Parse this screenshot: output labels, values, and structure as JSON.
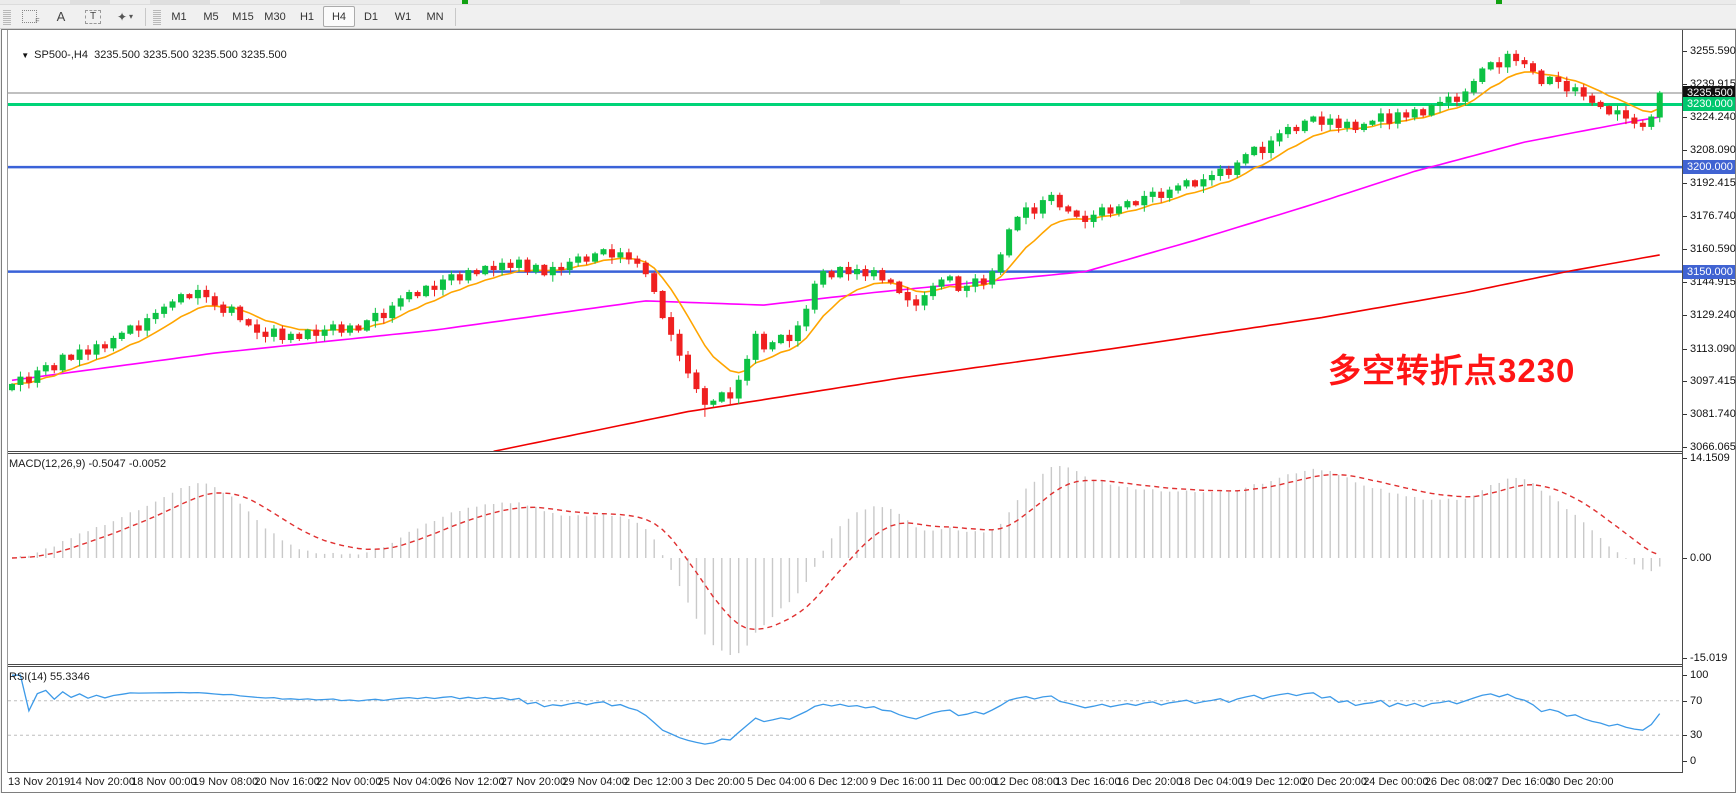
{
  "toolbar": {
    "tools": [
      {
        "id": "indicators-grid",
        "glyph": "F"
      },
      {
        "id": "text-tool",
        "glyph": "A"
      },
      {
        "id": "label-tool",
        "glyph": "T"
      },
      {
        "id": "shapes-tool",
        "glyph": "✦",
        "caret": "▾"
      }
    ],
    "timeframes": {
      "items": [
        "M1",
        "M5",
        "M15",
        "M30",
        "H1",
        "H4",
        "D1",
        "W1",
        "MN"
      ],
      "active": "H4"
    }
  },
  "chart": {
    "title": "SP500-,H4  3235.500 3235.500 3235.500 3235.500",
    "menu_arrow": "▼",
    "annotation": {
      "text": "多空转折点3230",
      "color": "#ff1414"
    },
    "axis_ticks": [
      "3255.590",
      "3239.915",
      "3224.240",
      "3208.090",
      "3192.415",
      "3176.740",
      "3160.590",
      "3144.915",
      "3129.240",
      "3113.090",
      "3097.415",
      "3081.740",
      "3066.065"
    ],
    "levels": [
      {
        "label": "3235.500",
        "price": 3235.5,
        "style": "current"
      },
      {
        "label": "3230.000",
        "price": 3230.0,
        "style": "green"
      },
      {
        "label": "3200.000",
        "price": 3200.0,
        "style": "blue"
      },
      {
        "label": "3150.000",
        "price": 3150.0,
        "style": "blue"
      }
    ],
    "level_styles": {
      "current": {
        "line": "#808080",
        "box": "#101010",
        "thickness": 1
      },
      "green": {
        "line": "#00d478",
        "box": "#00c76e",
        "thickness": 3
      },
      "blue": {
        "line": "#3a62d8",
        "box": "#4063d2",
        "thickness": 2.5
      }
    },
    "colors": {
      "up": "#0dc244",
      "down": "#ef2020",
      "orange_ma": "#ffa500",
      "magenta_ma": "#ff00ff",
      "red_ma": "#f00000"
    }
  },
  "chart_data": {
    "type": "candlestick",
    "symbol": "SP500-",
    "timeframe": "H4",
    "ohlc_note": "closes read from chart; open=prev close; wicks approximated",
    "first_open": 3093.5,
    "closes": [
      3096,
      3099.5,
      3097,
      3102.5,
      3105,
      3103,
      3110,
      3108,
      3112.5,
      3110.5,
      3115,
      3113.5,
      3118,
      3120.5,
      3124,
      3122,
      3127.5,
      3130,
      3133,
      3135.5,
      3139,
      3137.5,
      3141,
      3138,
      3134,
      3130.5,
      3133,
      3127,
      3124.5,
      3121,
      3119,
      3122.5,
      3117.5,
      3120,
      3118,
      3122,
      3119.5,
      3122,
      3124.5,
      3121,
      3124,
      3122,
      3126.5,
      3130,
      3128,
      3133.5,
      3137,
      3140,
      3138.5,
      3143,
      3141.5,
      3146,
      3148.5,
      3146,
      3150.5,
      3149,
      3152.5,
      3151,
      3154,
      3152,
      3155.5,
      3150,
      3153,
      3148.5,
      3152,
      3151,
      3154.5,
      3157,
      3155,
      3158.5,
      3160.5,
      3157,
      3159,
      3156,
      3154,
      3149,
      3140.5,
      3128,
      3120,
      3110,
      3101.5,
      3094,
      3086.5,
      3088,
      3092,
      3089.5,
      3098,
      3108,
      3120,
      3113,
      3116,
      3119.5,
      3117,
      3124,
      3132,
      3144,
      3150,
      3147.5,
      3152,
      3149,
      3151,
      3148,
      3150.5,
      3146,
      3145,
      3140,
      3136.5,
      3134,
      3138.5,
      3143,
      3146,
      3147.5,
      3141,
      3143,
      3146.5,
      3144,
      3150,
      3158,
      3170,
      3176,
      3180.5,
      3178,
      3184,
      3186.5,
      3181,
      3179,
      3176.5,
      3174,
      3177,
      3180.5,
      3178,
      3181,
      3183.5,
      3182,
      3186,
      3188,
      3185.5,
      3189,
      3191,
      3193.5,
      3191,
      3194,
      3196,
      3199,
      3196.5,
      3202,
      3206,
      3209.5,
      3207,
      3212.5,
      3216,
      3219,
      3217.5,
      3222,
      3224,
      3220.5,
      3223,
      3219,
      3221.5,
      3218,
      3220.5,
      3222,
      3225.5,
      3221,
      3226,
      3224,
      3227.5,
      3225,
      3229.5,
      3231,
      3233.5,
      3231.5,
      3236,
      3241,
      3247,
      3250,
      3248,
      3254,
      3251,
      3249.5,
      3246,
      3240,
      3243,
      3241,
      3236.5,
      3238,
      3234,
      3231,
      3229,
      3225.5,
      3227,
      3223.5,
      3221,
      3219.5,
      3224,
      3235.5
    ],
    "wick_overrides": {
      "82": {
        "low": 3080.5
      },
      "177": {
        "high": 3255.7
      },
      "195": {
        "low": 3221.5
      }
    },
    "y_axis_range": [
      3066.065,
      3255.59
    ],
    "moving_averages": {
      "magenta_anchors": [
        [
          0,
          3098
        ],
        [
          24,
          3111
        ],
        [
          50,
          3122
        ],
        [
          75,
          3136
        ],
        [
          89,
          3134
        ],
        [
          102,
          3140
        ],
        [
          127,
          3150
        ],
        [
          140,
          3165
        ],
        [
          153,
          3181
        ],
        [
          166,
          3198
        ],
        [
          179,
          3212
        ],
        [
          192,
          3222
        ],
        [
          195,
          3224
        ]
      ],
      "red_anchors": [
        [
          57,
          3064
        ],
        [
          80,
          3083
        ],
        [
          105,
          3099
        ],
        [
          130,
          3113
        ],
        [
          155,
          3128
        ],
        [
          172,
          3140
        ],
        [
          184,
          3150
        ],
        [
          195,
          3158
        ]
      ],
      "orange_ema_period": 9
    }
  },
  "macd": {
    "label": "MACD(12,26,9) -0.5047 -0.0052",
    "params": [
      12,
      26,
      9
    ],
    "axis": [
      "14.1509",
      "0.00",
      "-15.019"
    ],
    "hist_color": "#c9c9c9",
    "signal_color": "#e03030"
  },
  "rsi": {
    "label": "RSI(14) 55.3346",
    "period": 14,
    "value": 55.3346,
    "axis": [
      "100",
      "70",
      "30",
      "0"
    ],
    "level_lines": [
      70,
      30
    ],
    "line_color": "#3d9ae8",
    "level_color": "#bdbdbd"
  },
  "dates": [
    "13 Nov 2019",
    "14 Nov 20:00",
    "18 Nov 00:00",
    "19 Nov 08:00",
    "20 Nov 16:00",
    "22 Nov 00:00",
    "25 Nov 04:00",
    "26 Nov 12:00",
    "27 Nov 20:00",
    "29 Nov 04:00",
    "2 Dec 12:00",
    "3 Dec 20:00",
    "5 Dec 04:00",
    "6 Dec 12:00",
    "9 Dec 16:00",
    "11 Dec 00:00",
    "12 Dec 08:00",
    "13 Dec 16:00",
    "16 Dec 20:00",
    "18 Dec 04:00",
    "19 Dec 12:00",
    "20 Dec 20:00",
    "24 Dec 00:00",
    "26 Dec 08:00",
    "27 Dec 16:00",
    "30 Dec 20:00"
  ]
}
